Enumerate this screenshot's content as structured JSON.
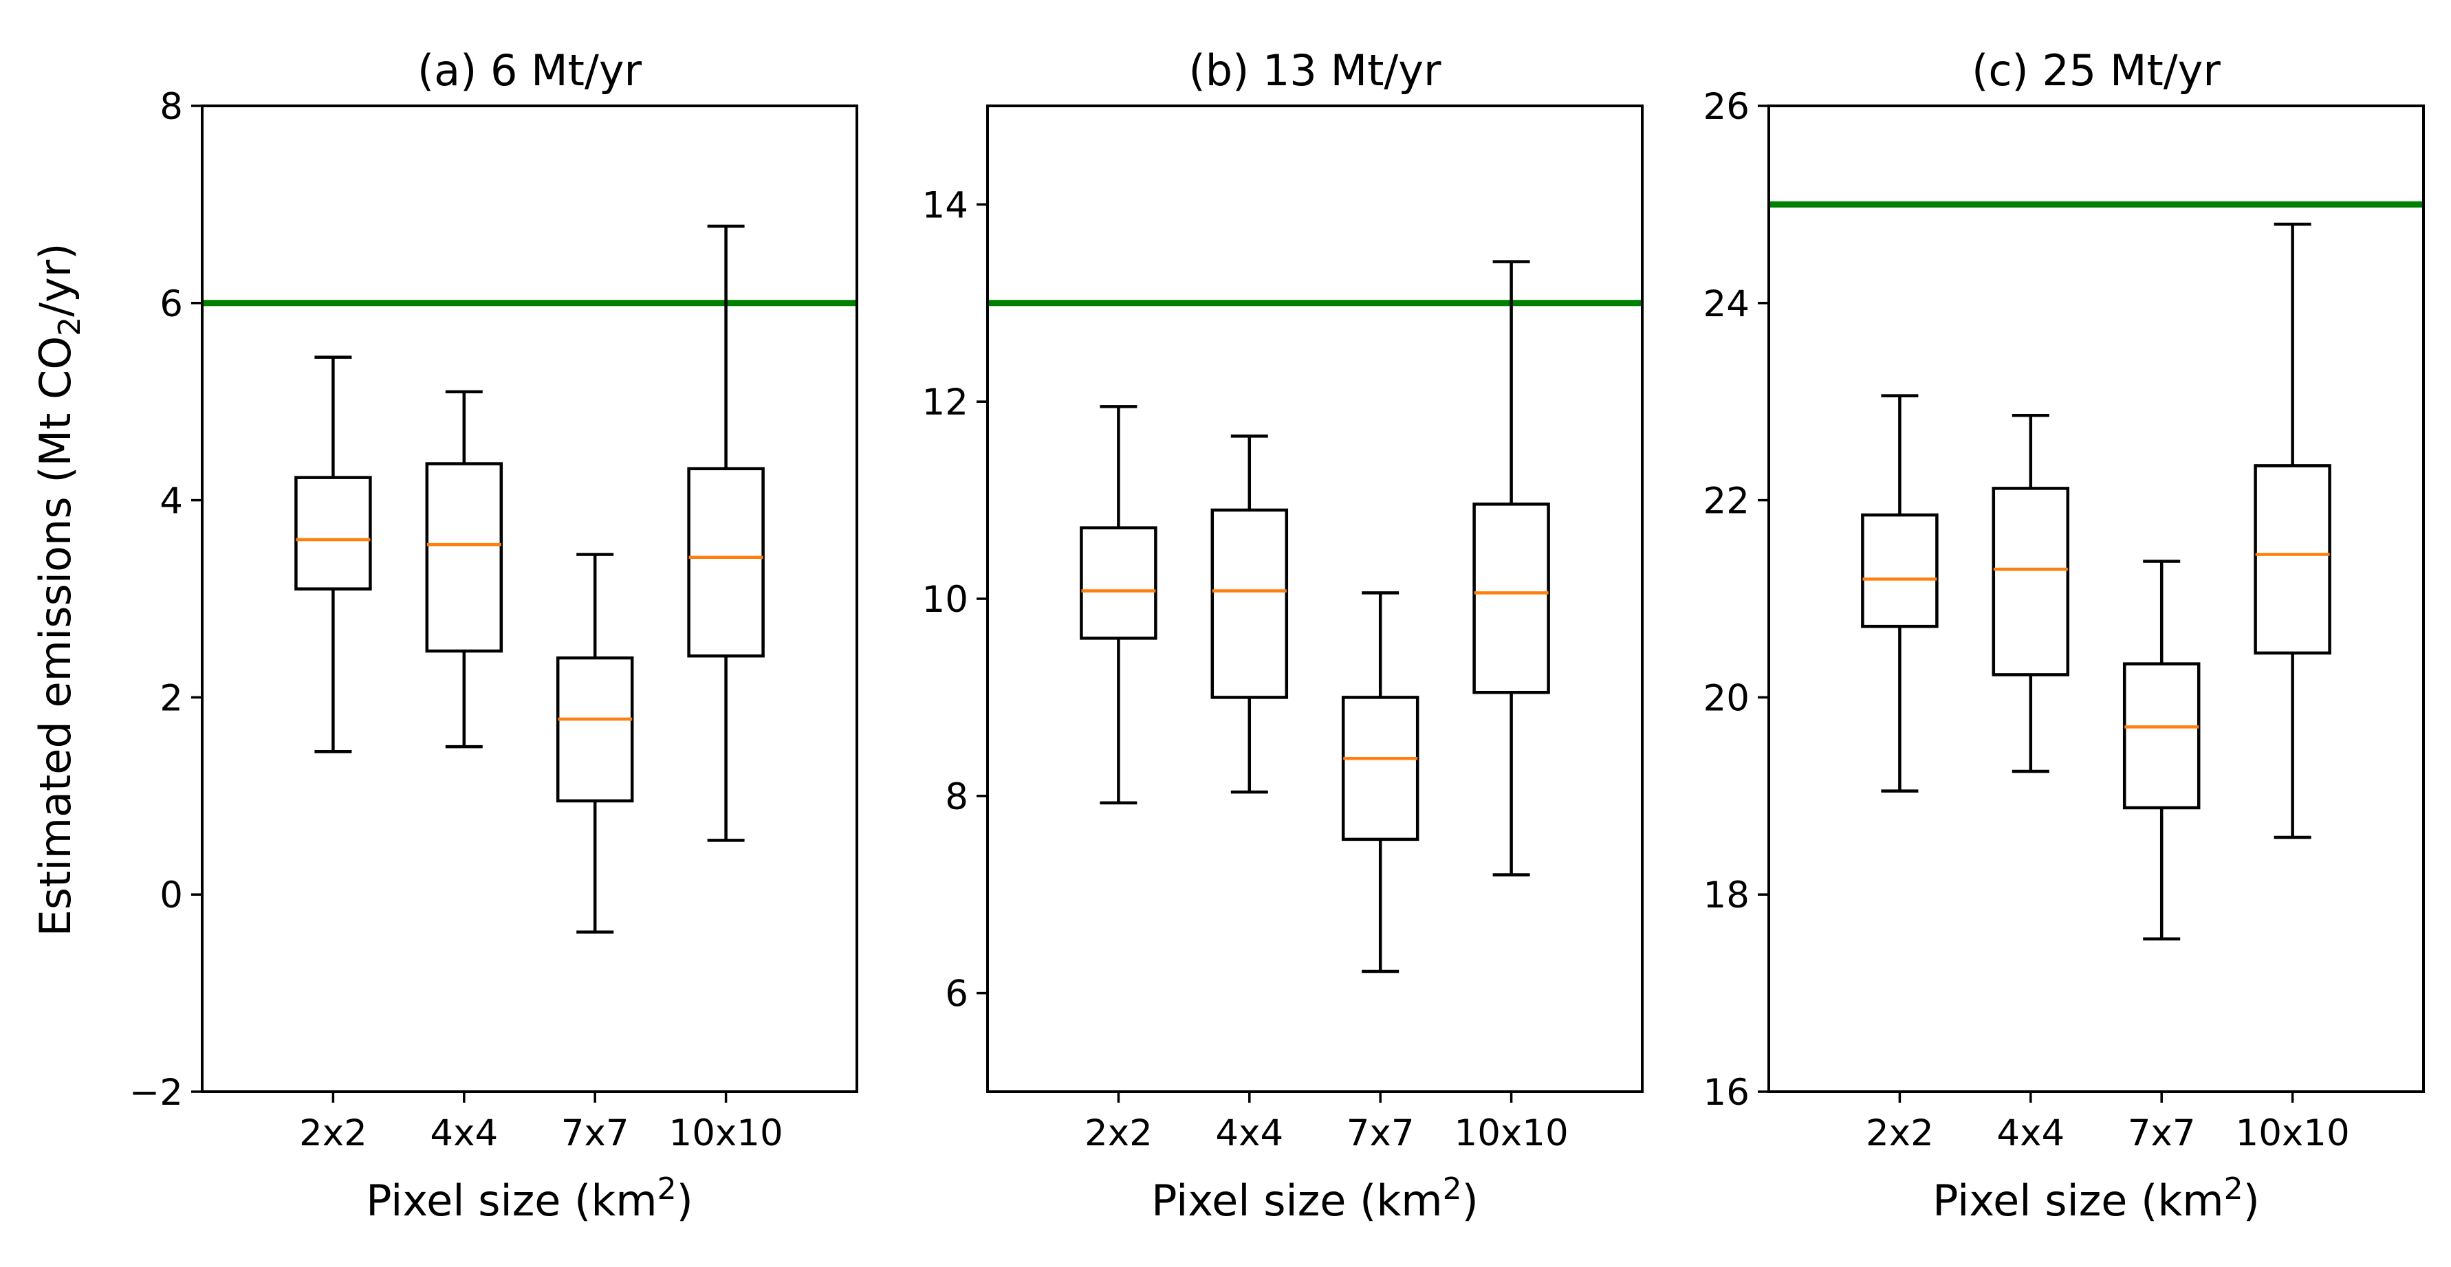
{
  "figure": {
    "ylabel_main": "Estimated emissions (Mt CO",
    "ylabel_sub": "2",
    "ylabel_tail": "/yr)"
  },
  "colors": {
    "box": "#000000",
    "median": "#ff7f0e",
    "reference": "#008000"
  },
  "chart_data": [
    {
      "type": "box",
      "title": "(a) 6 Mt/yr",
      "xlabel_main": "Pixel size (km",
      "xlabel_sup": "2",
      "xlabel_tail": ")",
      "categories": [
        "2x2",
        "4x4",
        "7x7",
        "10x10"
      ],
      "ylim": [
        -2,
        8
      ],
      "yticks": [
        -2,
        0,
        2,
        4,
        6,
        8
      ],
      "ytick_labels": [
        "−2",
        "0",
        "2",
        "4",
        "6",
        "8"
      ],
      "reference_line": 6,
      "boxes": [
        {
          "whislo": 1.45,
          "q1": 3.1,
          "med": 3.6,
          "q3": 4.23,
          "whishi": 5.45
        },
        {
          "whislo": 1.5,
          "q1": 2.47,
          "med": 3.55,
          "q3": 4.37,
          "whishi": 5.1
        },
        {
          "whislo": -0.38,
          "q1": 0.95,
          "med": 1.78,
          "q3": 2.4,
          "whishi": 3.45
        },
        {
          "whislo": 0.55,
          "q1": 2.42,
          "med": 3.42,
          "q3": 4.32,
          "whishi": 6.78
        }
      ]
    },
    {
      "type": "box",
      "title": "(b) 13 Mt/yr",
      "xlabel_main": "Pixel size (km",
      "xlabel_sup": "2",
      "xlabel_tail": ")",
      "categories": [
        "2x2",
        "4x4",
        "7x7",
        "10x10"
      ],
      "ylim": [
        5,
        15
      ],
      "yticks": [
        6,
        8,
        10,
        12,
        14
      ],
      "ytick_labels": [
        "6",
        "8",
        "10",
        "12",
        "14"
      ],
      "reference_line": 13,
      "boxes": [
        {
          "whislo": 7.93,
          "q1": 9.6,
          "med": 10.08,
          "q3": 10.72,
          "whishi": 11.95
        },
        {
          "whislo": 8.04,
          "q1": 9.0,
          "med": 10.08,
          "q3": 10.9,
          "whishi": 11.65
        },
        {
          "whislo": 6.22,
          "q1": 7.56,
          "med": 8.38,
          "q3": 9.0,
          "whishi": 10.06
        },
        {
          "whislo": 7.2,
          "q1": 9.05,
          "med": 10.06,
          "q3": 10.96,
          "whishi": 13.42
        }
      ]
    },
    {
      "type": "box",
      "title": "(c) 25 Mt/yr",
      "xlabel_main": "Pixel size (km",
      "xlabel_sup": "2",
      "xlabel_tail": ")",
      "categories": [
        "2x2",
        "4x4",
        "7x7",
        "10x10"
      ],
      "ylim": [
        16,
        26
      ],
      "yticks": [
        16,
        18,
        20,
        22,
        24,
        26
      ],
      "ytick_labels": [
        "16",
        "18",
        "20",
        "22",
        "24",
        "26"
      ],
      "reference_line": 25,
      "boxes": [
        {
          "whislo": 19.05,
          "q1": 20.72,
          "med": 21.2,
          "q3": 21.85,
          "whishi": 23.06
        },
        {
          "whislo": 19.25,
          "q1": 20.23,
          "med": 21.3,
          "q3": 22.12,
          "whishi": 22.86
        },
        {
          "whislo": 17.55,
          "q1": 18.88,
          "med": 19.7,
          "q3": 20.34,
          "whishi": 21.38
        },
        {
          "whislo": 18.58,
          "q1": 20.45,
          "med": 21.45,
          "q3": 22.35,
          "whishi": 24.8
        }
      ]
    }
  ]
}
